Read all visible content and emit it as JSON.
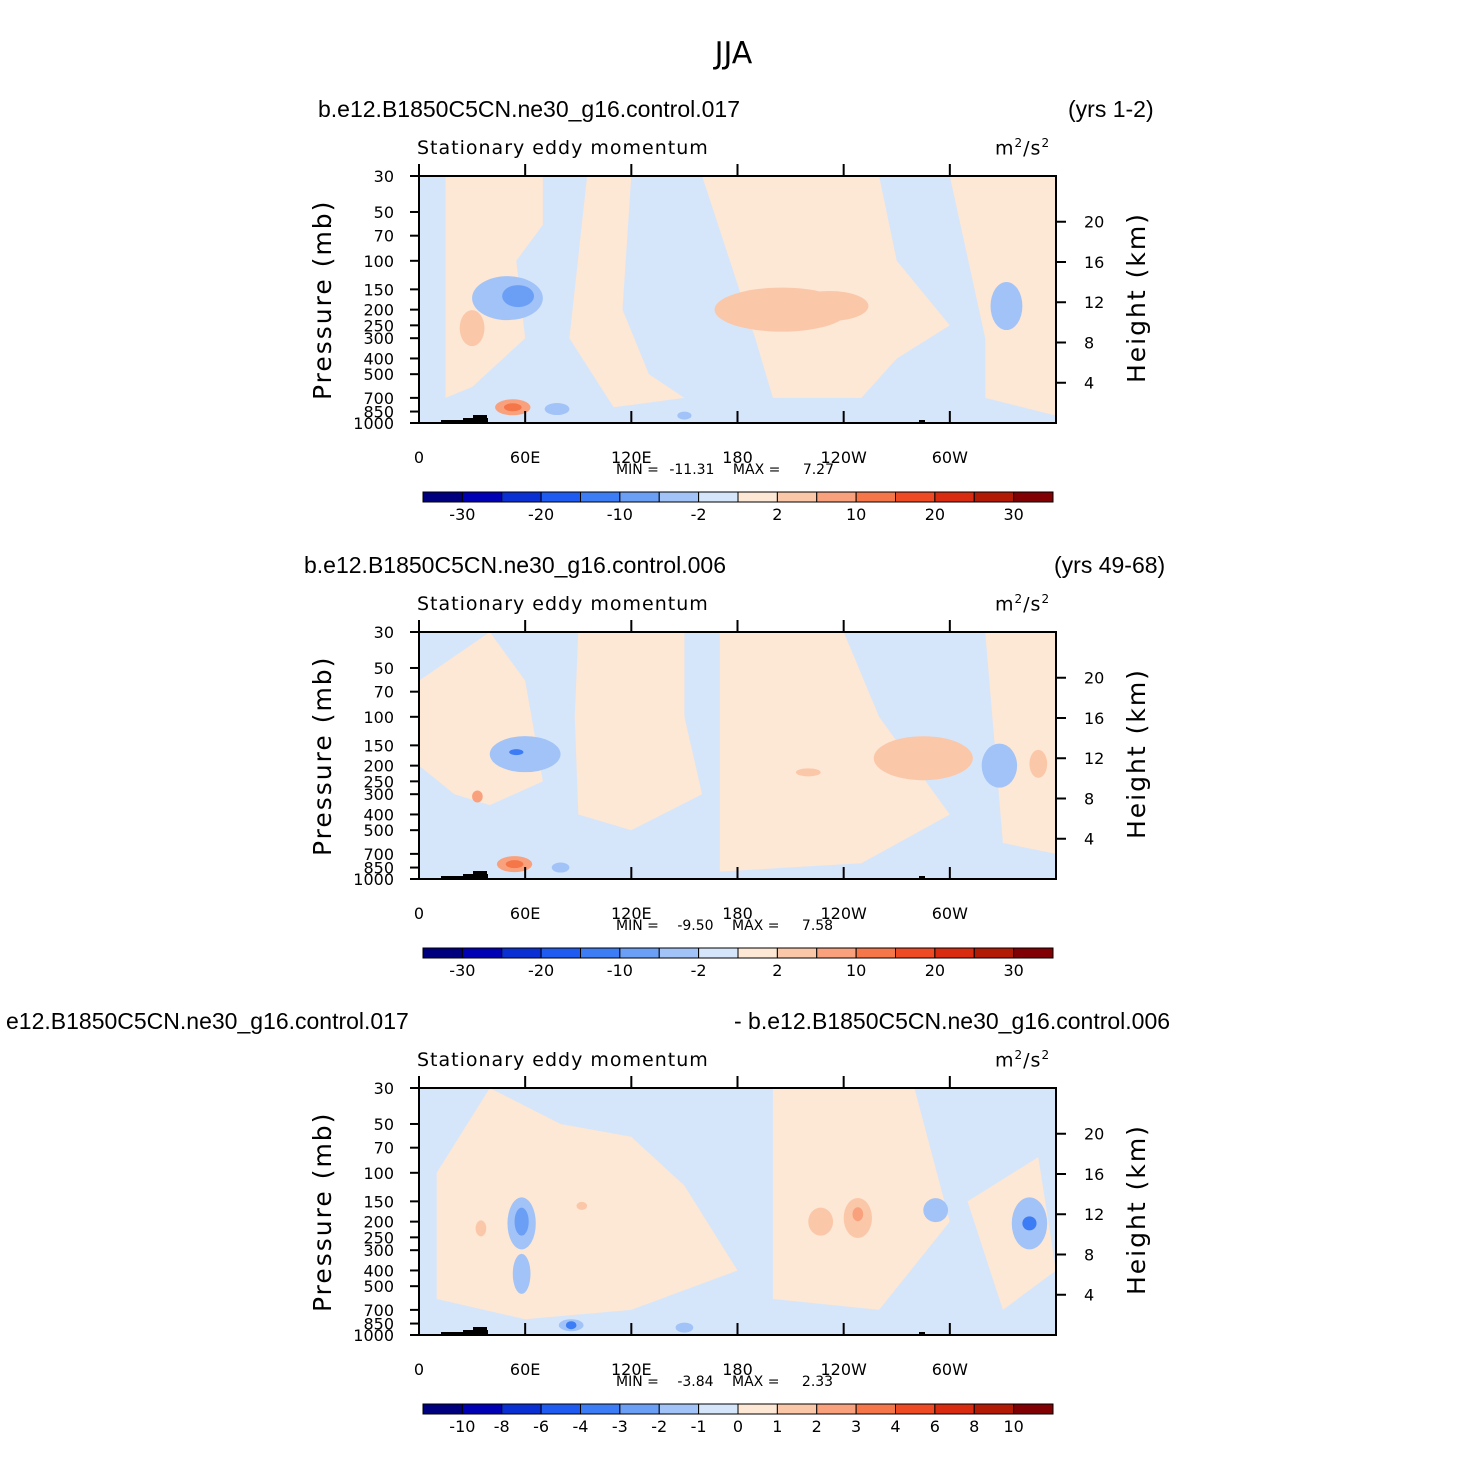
{
  "figure": {
    "title": "JJA"
  },
  "palette": {
    "colors": [
      "#00007f",
      "#0000b4",
      "#0a2fd2",
      "#1f5bf0",
      "#3c7cf4",
      "#6b9ff6",
      "#a2c3f7",
      "#d5e6fb",
      "#fde7d5",
      "#fbc7a9",
      "#f9a17d",
      "#f47649",
      "#ee4a24",
      "#d82b10",
      "#b21a06",
      "#800004"
    ],
    "bg_blue": "#d5e6fb",
    "bg_orange": "#fde7d5"
  },
  "chart_data": [
    {
      "type": "heatmap",
      "case_left": "b.e12.B1850C5CN.ne30_g16.control.017",
      "case_right": "(yrs 1-2)",
      "left_string": "Stationary eddy momentum",
      "units_base": "m",
      "units_exp": "2",
      "units_base2": "/s",
      "units_exp2": "2",
      "ylabel": "Pressure (mb)",
      "ylabel_right": "Height (km)",
      "x_ticks": [
        "0",
        "60E",
        "120E",
        "180",
        "120W",
        "60W"
      ],
      "y_ticks": [
        "30",
        "50",
        "70",
        "100",
        "150",
        "200",
        "250",
        "300",
        "400",
        "500",
        "700",
        "850",
        "1000"
      ],
      "height_ticks": [
        "20",
        "16",
        "12",
        "8",
        "4"
      ],
      "stats": {
        "min_label": "MIN =",
        "min": "-11.31",
        "max_label": "MAX =",
        "max": "7.27"
      },
      "colorbar_labels": [
        "-30",
        "-20",
        "-10",
        "-2",
        "2",
        "10",
        "20",
        "30"
      ],
      "ylim": [
        1000,
        30
      ],
      "xlim": [
        0,
        360
      ]
    },
    {
      "type": "heatmap",
      "case_left": "b.e12.B1850C5CN.ne30_g16.control.006",
      "case_right": "(yrs 49-68)",
      "left_string": "Stationary eddy momentum",
      "units_base": "m",
      "units_exp": "2",
      "units_base2": "/s",
      "units_exp2": "2",
      "ylabel": "Pressure (mb)",
      "ylabel_right": "Height (km)",
      "x_ticks": [
        "0",
        "60E",
        "120E",
        "180",
        "120W",
        "60W"
      ],
      "y_ticks": [
        "30",
        "50",
        "70",
        "100",
        "150",
        "200",
        "250",
        "300",
        "400",
        "500",
        "700",
        "850",
        "1000"
      ],
      "height_ticks": [
        "20",
        "16",
        "12",
        "8",
        "4"
      ],
      "stats": {
        "min_label": "MIN =",
        "min": "-9.50",
        "max_label": "MAX =",
        "max": "7.58"
      },
      "colorbar_labels": [
        "-30",
        "-20",
        "-10",
        "-2",
        "2",
        "10",
        "20",
        "30"
      ],
      "ylim": [
        1000,
        30
      ],
      "xlim": [
        0,
        360
      ]
    },
    {
      "type": "heatmap",
      "case_left": "e12.B1850C5CN.ne30_g16.control.017",
      "case_right": "- b.e12.B1850C5CN.ne30_g16.control.006",
      "left_string": "Stationary eddy momentum",
      "units_base": "m",
      "units_exp": "2",
      "units_base2": "/s",
      "units_exp2": "2",
      "ylabel": "Pressure (mb)",
      "ylabel_right": "Height (km)",
      "x_ticks": [
        "0",
        "60E",
        "120E",
        "180",
        "120W",
        "60W"
      ],
      "y_ticks": [
        "30",
        "50",
        "70",
        "100",
        "150",
        "200",
        "250",
        "300",
        "400",
        "500",
        "700",
        "850",
        "1000"
      ],
      "height_ticks": [
        "20",
        "16",
        "12",
        "8",
        "4"
      ],
      "stats": {
        "min_label": "MIN =",
        "min": "-3.84",
        "max_label": "MAX =",
        "max": "2.33"
      },
      "colorbar_labels": [
        "-10",
        "-8",
        "-6",
        "-4",
        "-3",
        "-2",
        "-1",
        "0",
        "1",
        "2",
        "3",
        "4",
        "6",
        "8",
        "10"
      ],
      "ylim": [
        1000,
        30
      ],
      "xlim": [
        0,
        360
      ]
    }
  ]
}
